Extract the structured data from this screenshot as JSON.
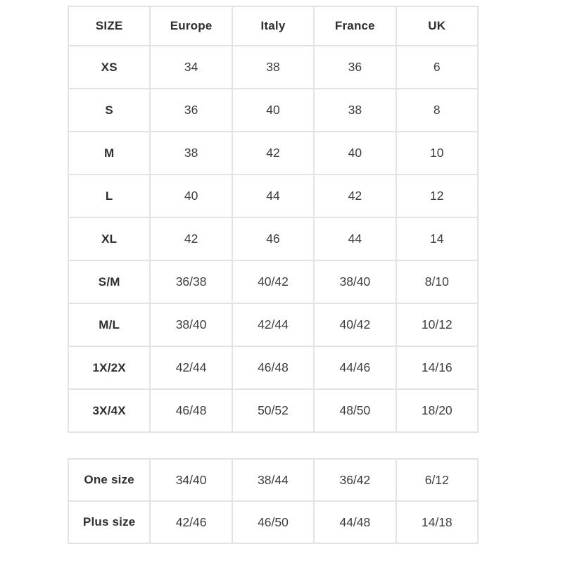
{
  "colors": {
    "border": "#e3e3e3",
    "header_text": "#2f2f2f",
    "cell_text": "#3d3d3d",
    "page_bg": "#ffffff"
  },
  "size_table": {
    "columns": [
      "SIZE",
      "Europe",
      "Italy",
      "France",
      "UK"
    ],
    "rows": [
      {
        "size": "XS",
        "values": [
          "34",
          "38",
          "36",
          "6"
        ]
      },
      {
        "size": "S",
        "values": [
          "36",
          "40",
          "38",
          "8"
        ]
      },
      {
        "size": "M",
        "values": [
          "38",
          "42",
          "40",
          "10"
        ]
      },
      {
        "size": "L",
        "values": [
          "40",
          "44",
          "42",
          "12"
        ]
      },
      {
        "size": "XL",
        "values": [
          "42",
          "46",
          "44",
          "14"
        ]
      },
      {
        "size": "S/M",
        "values": [
          "36/38",
          "40/42",
          "38/40",
          "8/10"
        ]
      },
      {
        "size": "M/L",
        "values": [
          "38/40",
          "42/44",
          "40/42",
          "10/12"
        ]
      },
      {
        "size": "1X/2X",
        "values": [
          "42/44",
          "46/48",
          "44/46",
          "14/16"
        ]
      },
      {
        "size": "3X/4X",
        "values": [
          "46/48",
          "50/52",
          "48/50",
          "18/20"
        ]
      }
    ]
  },
  "extra_table": {
    "rows": [
      {
        "size": "One size",
        "values": [
          "34/40",
          "38/44",
          "36/42",
          "6/12"
        ]
      },
      {
        "size": "Plus size",
        "values": [
          "42/46",
          "46/50",
          "44/48",
          "14/18"
        ]
      }
    ]
  }
}
